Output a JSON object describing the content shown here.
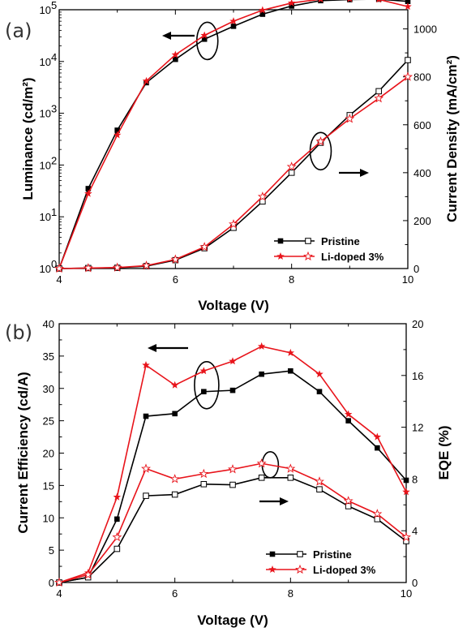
{
  "colors": {
    "pristine": "#000000",
    "li_doped": "#e8141b"
  },
  "chart_data": [
    {
      "panel_label": "(a)",
      "type": "line",
      "xlabel": "Voltage (V)",
      "ylabel_left": "Luminance (cd/m²)",
      "ylabel_right": "Current Density (mA/cm²)",
      "xlim": [
        4,
        10
      ],
      "ylim_left": [
        1,
        100000
      ],
      "yscale_left": "log",
      "ylim_right": [
        0,
        1080
      ],
      "x_ticks": [
        "4",
        "6",
        "8",
        "10"
      ],
      "y_left_ticks": [
        "10",
        "10",
        "10",
        "10",
        "10",
        "10"
      ],
      "y_left_tick_exponents": [
        "0",
        "1",
        "2",
        "3",
        "4",
        "5"
      ],
      "y_right_ticks": [
        "0",
        "200",
        "400",
        "600",
        "800",
        "1000"
      ],
      "legend": [
        "Pristine",
        "Li-doped 3%"
      ],
      "legend_position": "bottom-right",
      "series": [
        {
          "name": "Pristine",
          "axis": "left",
          "marker": "filled-square",
          "color": "#000000",
          "x": [
            4,
            4.5,
            5,
            5.5,
            6,
            6.5,
            7,
            7.5,
            8,
            8.5,
            9,
            9.5,
            10
          ],
          "y": [
            1,
            35,
            470,
            3900,
            11000,
            27000,
            48000,
            82000,
            118000,
            150000,
            157000,
            160000,
            145000
          ]
        },
        {
          "name": "Li-doped 3%",
          "axis": "left",
          "marker": "filled-star",
          "color": "#e8141b",
          "x": [
            4,
            4.5,
            5,
            5.5,
            6,
            6.5,
            7,
            7.5,
            8,
            8.5,
            9,
            9.5,
            10
          ],
          "y": [
            1,
            28,
            380,
            4200,
            13500,
            32000,
            60000,
            98000,
            135000,
            160000,
            162000,
            158000,
            115000
          ]
        },
        {
          "name": "Pristine",
          "axis": "right",
          "marker": "open-square",
          "color": "#000000",
          "x": [
            4,
            4.5,
            5,
            5.5,
            6,
            6.5,
            7,
            7.5,
            8,
            8.5,
            9,
            9.5,
            10
          ],
          "y": [
            0,
            2,
            3,
            10,
            35,
            85,
            170,
            280,
            400,
            525,
            640,
            740,
            870
          ]
        },
        {
          "name": "Li-doped 3%",
          "axis": "right",
          "marker": "open-star",
          "color": "#e8141b",
          "x": [
            4,
            4.5,
            5,
            5.5,
            6,
            6.5,
            7,
            7.5,
            8,
            8.5,
            9,
            9.5,
            10
          ],
          "y": [
            0,
            2,
            4,
            12,
            38,
            90,
            185,
            300,
            425,
            530,
            625,
            710,
            800
          ]
        }
      ],
      "annotations": [
        {
          "type": "ellipse",
          "x": 8.5,
          "y_right": 490
        },
        {
          "type": "ellipse",
          "x": 6.55,
          "y_left": 25000
        },
        {
          "type": "arrow",
          "direction": "left",
          "points_to": "left-axis"
        },
        {
          "type": "arrow",
          "direction": "right",
          "points_to": "right-axis"
        }
      ]
    },
    {
      "panel_label": "(b)",
      "type": "line",
      "xlabel": "Voltage (V)",
      "ylabel_left": "Current Efficiency (cd/A)",
      "ylabel_right": "EQE (%)",
      "xlim": [
        4,
        10
      ],
      "ylim_left": [
        0,
        40
      ],
      "ylim_right": [
        0,
        20
      ],
      "x_ticks": [
        "4",
        "6",
        "8",
        "10"
      ],
      "y_left_ticks": [
        "0",
        "5",
        "10",
        "15",
        "20",
        "25",
        "30",
        "35",
        "40"
      ],
      "y_right_ticks": [
        "0",
        "4",
        "8",
        "12",
        "16",
        "20"
      ],
      "legend": [
        "Pristine",
        "Li-doped 3%"
      ],
      "legend_position": "bottom-right",
      "series": [
        {
          "name": "Pristine",
          "axis": "left",
          "marker": "filled-square",
          "color": "#000000",
          "x": [
            4,
            4.5,
            5,
            5.5,
            6,
            6.5,
            7,
            7.5,
            8,
            8.5,
            9,
            9.5,
            10
          ],
          "y": [
            0,
            0.8,
            9.8,
            25.7,
            26.1,
            29.5,
            29.7,
            32.2,
            32.7,
            29.5,
            25.0,
            20.8,
            15.8
          ]
        },
        {
          "name": "Li-doped 3%",
          "axis": "left",
          "marker": "filled-star",
          "color": "#e8141b",
          "x": [
            4,
            4.5,
            5,
            5.5,
            6,
            6.5,
            7,
            7.5,
            8,
            8.5,
            9,
            9.5,
            10
          ],
          "y": [
            0,
            1.5,
            13.2,
            33.6,
            30.5,
            32.7,
            34.2,
            36.5,
            35.5,
            32.2,
            26.0,
            22.5,
            14.0
          ]
        },
        {
          "name": "Pristine",
          "axis": "right",
          "marker": "open-square",
          "color": "#000000",
          "x": [
            4,
            4.5,
            5,
            5.5,
            6,
            6.5,
            7,
            7.5,
            8,
            8.5,
            9,
            9.5,
            10
          ],
          "y": [
            0,
            0.4,
            2.6,
            6.7,
            6.8,
            7.6,
            7.55,
            8.1,
            8.1,
            7.2,
            5.9,
            4.9,
            3.2
          ]
        },
        {
          "name": "Li-doped 3%",
          "axis": "right",
          "marker": "open-star",
          "color": "#e8141b",
          "x": [
            4,
            4.5,
            5,
            5.5,
            6,
            6.5,
            7,
            7.5,
            8,
            8.5,
            9,
            9.5,
            10
          ],
          "y": [
            0,
            0.6,
            3.5,
            8.8,
            8.0,
            8.4,
            8.75,
            9.2,
            8.8,
            7.8,
            6.3,
            5.3,
            3.5
          ]
        }
      ],
      "annotations": [
        {
          "type": "ellipse",
          "x": 6.55,
          "y_left": 30.5
        },
        {
          "type": "ellipse",
          "x": 7.65,
          "y_right": 9.1
        },
        {
          "type": "arrow",
          "direction": "left",
          "points_to": "left-axis"
        },
        {
          "type": "arrow",
          "direction": "right",
          "points_to": "right-axis"
        }
      ]
    }
  ]
}
